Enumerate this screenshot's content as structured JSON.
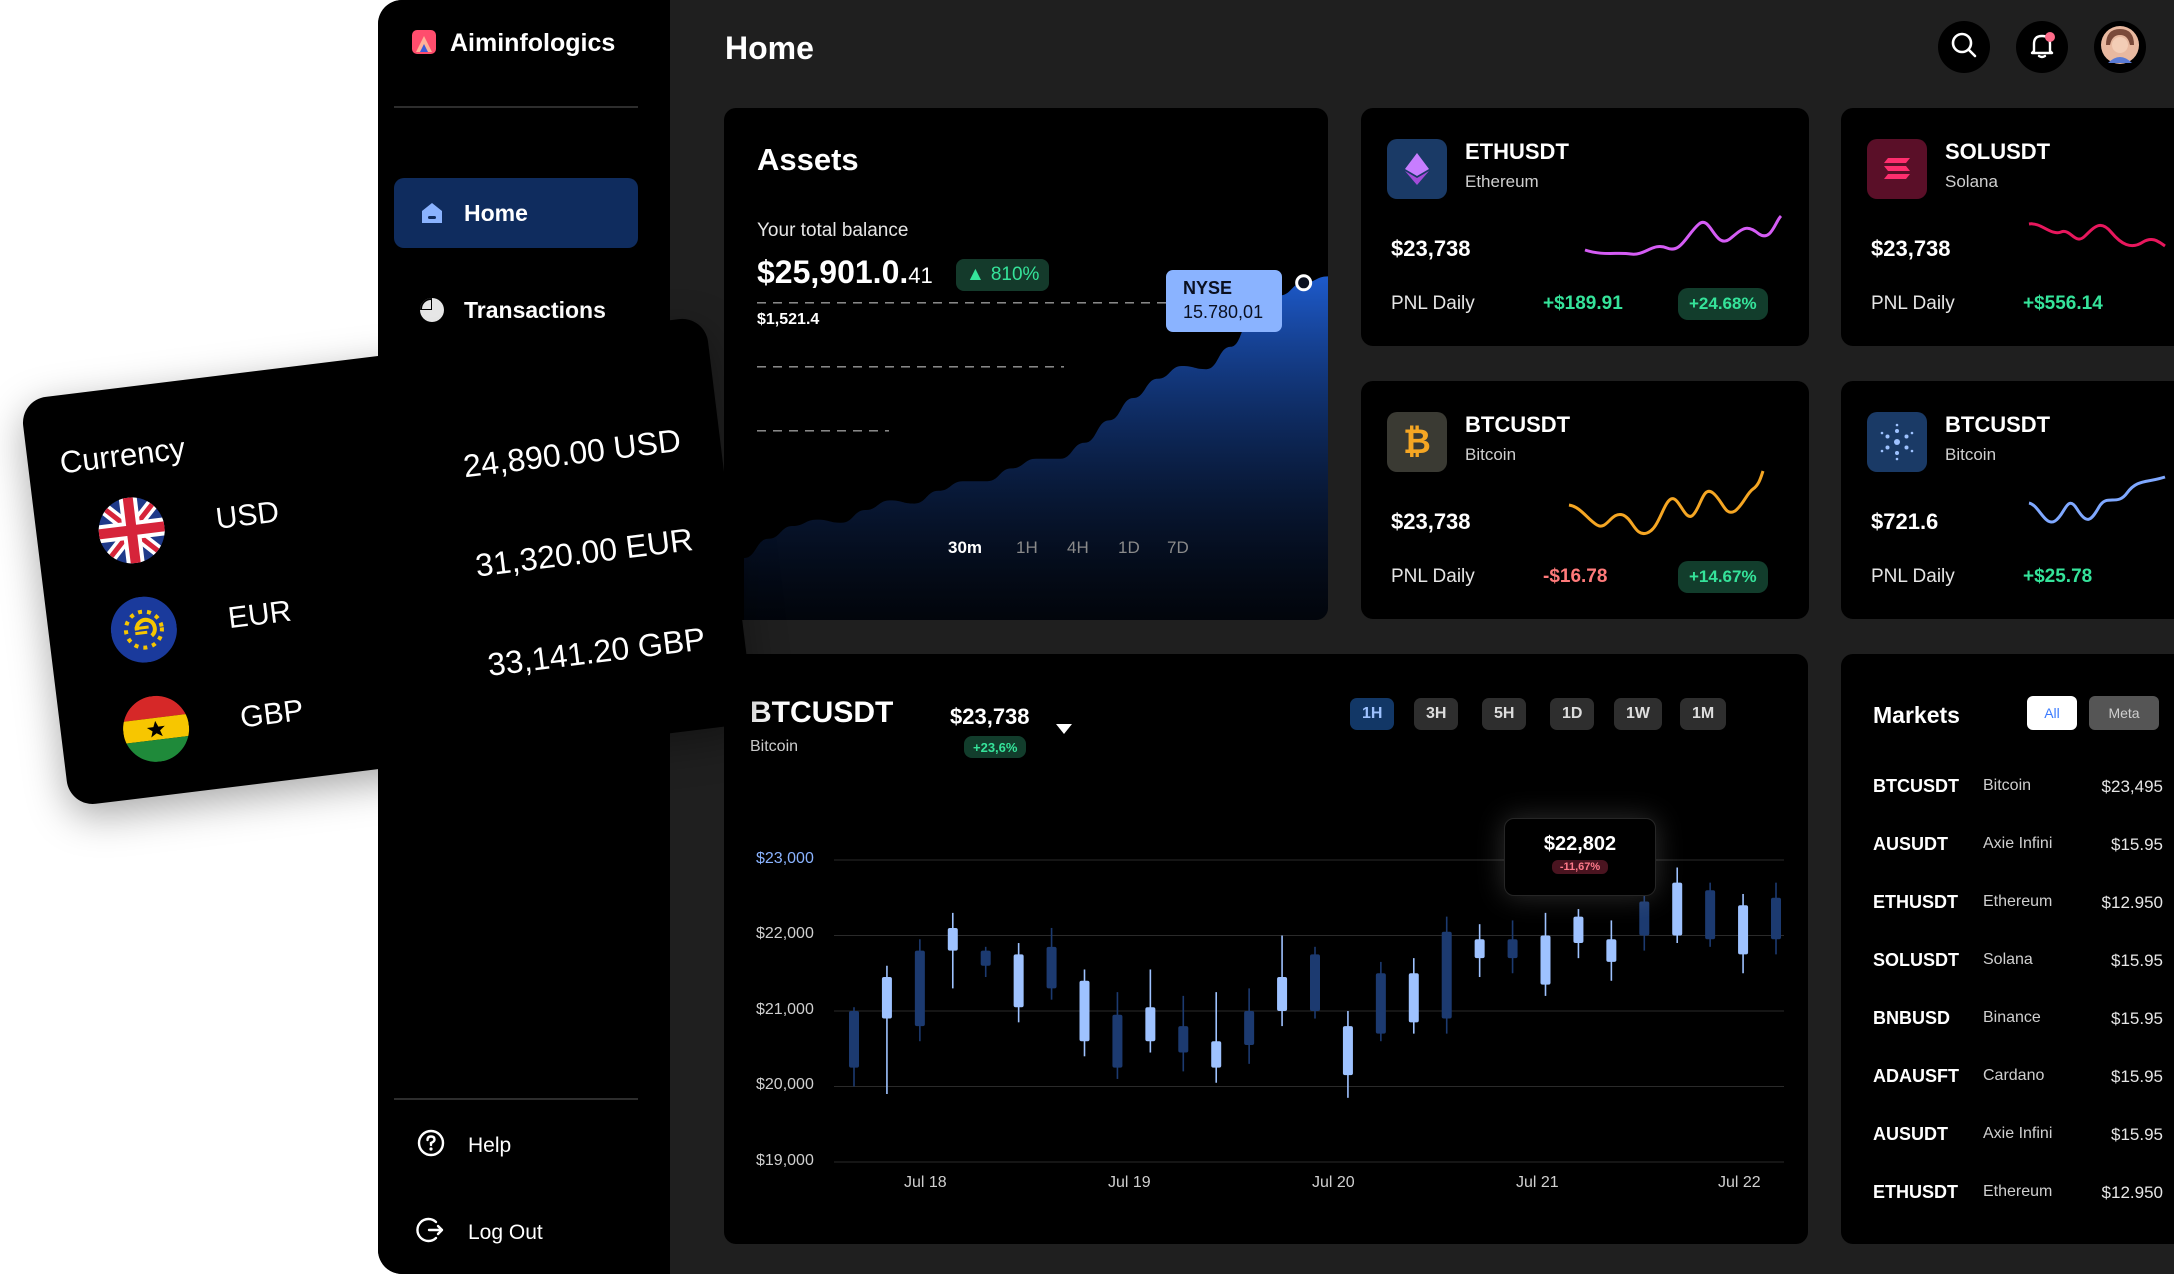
{
  "brand": {
    "name": "Aiminfologics"
  },
  "sidebar": {
    "nav": [
      {
        "label": "Home",
        "icon": "home-icon",
        "active": true
      },
      {
        "label": "Transactions",
        "icon": "pie-chart-icon",
        "active": false
      }
    ],
    "footer": [
      {
        "label": "Help",
        "icon": "help-icon"
      },
      {
        "label": "Log Out",
        "icon": "logout-icon"
      }
    ]
  },
  "header": {
    "title": "Home",
    "icons": [
      "search-icon",
      "bell-icon",
      "avatar"
    ]
  },
  "assets": {
    "title": "Assets",
    "balance_label": "Your total balance",
    "balance_main": "$25,901.0.",
    "balance_frac": "41",
    "change": "810%",
    "sub_value": "$1,521.4",
    "tooltip_title": "NYSE",
    "tooltip_value": "15.780,01",
    "timeframes": [
      "30m",
      "1H",
      "4H",
      "1D",
      "7D"
    ],
    "active_timeframe": "30m"
  },
  "coins": [
    {
      "symbol": "ETHUSDT",
      "name": "Ethereum",
      "price": "$23,738",
      "pnl_label": "PNL Daily",
      "pnl": "+$189.91",
      "pct": "+24.68%",
      "pnl_positive": true,
      "color": "#d55cf5",
      "icon": "ethereum-icon"
    },
    {
      "symbol": "SOLUSDT",
      "name": "Solana",
      "price": "$23,738",
      "pnl_label": "PNL Daily",
      "pnl": "+$556.14",
      "pct": "",
      "pnl_positive": true,
      "color": "#e8175d",
      "icon": "solana-icon"
    },
    {
      "symbol": "BTCUSDT",
      "name": "Bitcoin",
      "price": "$23,738",
      "pnl_label": "PNL Daily",
      "pnl": "-$16.78",
      "pct": "+14.67%",
      "pnl_positive": false,
      "color": "#f5a623",
      "icon": "bitcoin-icon"
    },
    {
      "symbol": "BTCUSDT",
      "name": "Bitcoin",
      "price": "$721.6",
      "pnl_label": "PNL Daily",
      "pnl": "+$25.78",
      "pct": "",
      "pnl_positive": true,
      "color": "#7fa8ff",
      "icon": "cardano-icon"
    }
  ],
  "btc_chart": {
    "symbol": "BTCUSDT",
    "name": "Bitcoin",
    "price": "$23,738",
    "change": "+23,6%",
    "ranges": [
      "1H",
      "3H",
      "5H",
      "1D",
      "1W",
      "1M"
    ],
    "active_range": "1H",
    "tooltip_value": "$22,802",
    "tooltip_change": "-11,67%"
  },
  "chart_data": {
    "type": "candlestick",
    "yticks": [
      "$23,000",
      "$22,000",
      "$21,000",
      "$20,000",
      "$19,000"
    ],
    "xticks": [
      "Jul 18",
      "Jul 19",
      "Jul 20",
      "Jul 21",
      "Jul 22"
    ],
    "ylim": [
      19000,
      23000
    ],
    "candles": [
      {
        "o": 20250,
        "c": 21000,
        "h": 21050,
        "l": 20000,
        "bull": false
      },
      {
        "o": 20900,
        "c": 21450,
        "h": 21600,
        "l": 19900,
        "bull": true
      },
      {
        "o": 20800,
        "c": 21800,
        "h": 21950,
        "l": 20600,
        "bull": false
      },
      {
        "o": 21800,
        "c": 22100,
        "h": 22300,
        "l": 21300,
        "bull": true
      },
      {
        "o": 21800,
        "c": 21600,
        "h": 21850,
        "l": 21450,
        "bull": false
      },
      {
        "o": 21050,
        "c": 21750,
        "h": 21900,
        "l": 20850,
        "bull": true
      },
      {
        "o": 21300,
        "c": 21850,
        "h": 22100,
        "l": 21150,
        "bull": false
      },
      {
        "o": 20600,
        "c": 21400,
        "h": 21550,
        "l": 20400,
        "bull": true
      },
      {
        "o": 20250,
        "c": 20950,
        "h": 21250,
        "l": 20100,
        "bull": false
      },
      {
        "o": 20600,
        "c": 21050,
        "h": 21550,
        "l": 20450,
        "bull": true
      },
      {
        "o": 20450,
        "c": 20800,
        "h": 21200,
        "l": 20200,
        "bull": false
      },
      {
        "o": 20250,
        "c": 20600,
        "h": 21250,
        "l": 20050,
        "bull": true
      },
      {
        "o": 20550,
        "c": 21000,
        "h": 21300,
        "l": 20300,
        "bull": false
      },
      {
        "o": 21000,
        "c": 21450,
        "h": 22000,
        "l": 20800,
        "bull": true
      },
      {
        "o": 21000,
        "c": 21750,
        "h": 21850,
        "l": 20900,
        "bull": false
      },
      {
        "o": 20150,
        "c": 20800,
        "h": 21000,
        "l": 19850,
        "bull": true
      },
      {
        "o": 20700,
        "c": 21500,
        "h": 21650,
        "l": 20600,
        "bull": false
      },
      {
        "o": 20850,
        "c": 21500,
        "h": 21700,
        "l": 20700,
        "bull": true
      },
      {
        "o": 20900,
        "c": 22050,
        "h": 22250,
        "l": 20700,
        "bull": false
      },
      {
        "o": 21950,
        "c": 21700,
        "h": 22150,
        "l": 21450,
        "bull": true
      },
      {
        "o": 21700,
        "c": 21950,
        "h": 22200,
        "l": 21500,
        "bull": false
      },
      {
        "o": 21350,
        "c": 22000,
        "h": 22300,
        "l": 21200,
        "bull": true
      },
      {
        "o": 21900,
        "c": 22250,
        "h": 22350,
        "l": 21700,
        "bull": true
      },
      {
        "o": 21650,
        "c": 21950,
        "h": 22200,
        "l": 21400,
        "bull": true
      },
      {
        "o": 22000,
        "c": 22450,
        "h": 22550,
        "l": 21800,
        "bull": false
      },
      {
        "o": 22000,
        "c": 22700,
        "h": 22900,
        "l": 21900,
        "bull": true
      },
      {
        "o": 21950,
        "c": 22600,
        "h": 22700,
        "l": 21850,
        "bull": false
      },
      {
        "o": 21750,
        "c": 22400,
        "h": 22550,
        "l": 21500,
        "bull": true
      },
      {
        "o": 21950,
        "c": 22500,
        "h": 22700,
        "l": 21750,
        "bull": false
      }
    ]
  },
  "assets_chart": {
    "values": [
      0,
      0.06,
      0.1,
      0.12,
      0.11,
      0.15,
      0.18,
      0.17,
      0.21,
      0.24,
      0.24,
      0.28,
      0.31,
      0.31,
      0.36,
      0.43,
      0.5,
      0.56,
      0.6,
      0.59,
      0.66,
      0.77,
      0.82,
      0.86,
      0.88
    ],
    "dashed_levels": [
      0.86,
      0.66,
      0.46
    ]
  },
  "markets": {
    "title": "Markets",
    "tabs": [
      "All",
      "Meta"
    ],
    "active_tab": "All",
    "rows": [
      {
        "symbol": "BTCUSDT",
        "name": "Bitcoin",
        "price": "$23,495"
      },
      {
        "symbol": "AUSUDT",
        "name": "Axie Infini",
        "price": "$15.95"
      },
      {
        "symbol": "ETHUSDT",
        "name": "Ethereum",
        "price": "$12.950"
      },
      {
        "symbol": "SOLUSDT",
        "name": "Solana",
        "price": "$15.95"
      },
      {
        "symbol": "BNBUSD",
        "name": "Binance",
        "price": "$15.95"
      },
      {
        "symbol": "ADAUSFT",
        "name": "Cardano",
        "price": "$15.95"
      },
      {
        "symbol": "AUSUDT",
        "name": "Axie Infini",
        "price": "$15.95"
      },
      {
        "symbol": "ETHUSDT",
        "name": "Ethereum",
        "price": "$12.950"
      }
    ]
  },
  "currency": {
    "title": "Currency",
    "items": [
      {
        "code": "USD",
        "amount": "24,890.00 USD",
        "flag": "uk-flag-icon"
      },
      {
        "code": "EUR",
        "amount": "31,320.00 EUR",
        "flag": "eu-flag-icon"
      },
      {
        "code": "GBP",
        "amount": "33,141.20 GBP",
        "flag": "ghana-flag-icon"
      }
    ]
  },
  "colors": {
    "accent": "#8ab3ff",
    "positive": "#35e39a",
    "negative": "#ff7a7a",
    "active_nav": "#0f2c5e"
  }
}
